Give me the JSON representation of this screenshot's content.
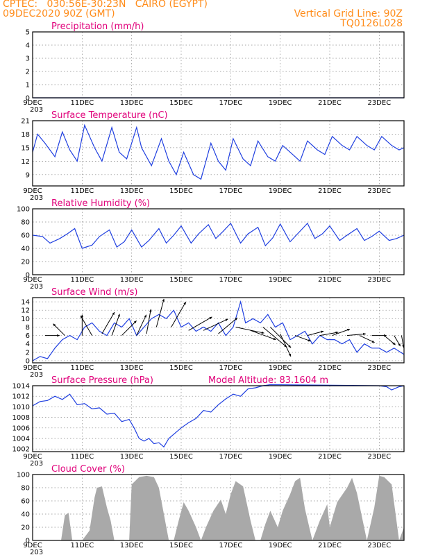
{
  "header": {
    "line1": "CPTEC:   030:56E-30:23N   CAIRO (EGYPT)",
    "line2": "09DEC2020 90Z (GMT)",
    "right1": "Vertical Grid Line: 90Z",
    "right2": "TQ0126L028"
  },
  "colors": {
    "header": "#ff8c1a",
    "title": "#e0007a",
    "line": "#1f3fe0",
    "cloud": "#a9a9a9"
  },
  "x_axis": {
    "range": [
      9.0,
      24.0
    ],
    "tick_days": [
      9,
      11,
      13,
      15,
      17,
      19,
      21,
      23
    ],
    "tick_labels": [
      "9DEC",
      "11DEC",
      "13DEC",
      "15DEC",
      "17DEC",
      "19DEC",
      "21DEC",
      "23DEC"
    ],
    "sub_label": "203"
  },
  "chart_data": [
    {
      "type": "line",
      "title": "Precipitation (mm/h)",
      "ylim": [
        0,
        5
      ],
      "yticks": [
        0,
        1,
        2,
        3,
        4,
        5
      ],
      "x": [
        9.0,
        24.0
      ],
      "y": [
        0,
        0
      ]
    },
    {
      "type": "line",
      "title": "Surface Temperature (nC)",
      "ylim": [
        6.5,
        21
      ],
      "yticks": [
        9,
        12,
        15,
        18,
        21
      ],
      "x": [
        9.0,
        9.2,
        9.5,
        9.9,
        10.2,
        10.5,
        10.8,
        11.1,
        11.5,
        11.8,
        12.2,
        12.5,
        12.8,
        13.2,
        13.4,
        13.8,
        14.2,
        14.5,
        14.8,
        15.1,
        15.5,
        15.8,
        16.2,
        16.5,
        16.8,
        17.1,
        17.5,
        17.8,
        18.1,
        18.5,
        18.8,
        19.1,
        19.5,
        19.8,
        20.1,
        20.5,
        20.8,
        21.1,
        21.5,
        21.8,
        22.1,
        22.5,
        22.8,
        23.1,
        23.5,
        23.8,
        24.0
      ],
      "y": [
        14,
        18,
        16,
        13,
        18.5,
        14.5,
        12,
        20,
        15,
        12,
        19.5,
        14,
        12.5,
        19.5,
        15,
        11,
        17,
        12,
        9,
        14,
        9,
        8,
        16,
        12,
        10,
        17,
        12.5,
        11,
        16.5,
        13,
        12,
        15.5,
        13.5,
        12,
        16.5,
        14.5,
        13.5,
        17.5,
        15.5,
        14.5,
        17.5,
        15.5,
        14.5,
        17.5,
        15.5,
        14.5,
        15
      ]
    },
    {
      "type": "line",
      "title": "Relative Humidity (%)",
      "ylim": [
        0,
        100
      ],
      "yticks": [
        0,
        20,
        40,
        60,
        80,
        100
      ],
      "x": [
        9.0,
        9.4,
        9.7,
        10.1,
        10.4,
        10.7,
        11.0,
        11.4,
        11.7,
        12.1,
        12.4,
        12.7,
        13.0,
        13.4,
        13.7,
        14.1,
        14.4,
        14.7,
        15.0,
        15.4,
        15.7,
        16.1,
        16.4,
        16.7,
        17.0,
        17.4,
        17.7,
        18.1,
        18.4,
        18.7,
        19.0,
        19.4,
        19.7,
        20.1,
        20.4,
        20.7,
        21.0,
        21.4,
        21.7,
        22.1,
        22.4,
        22.7,
        23.0,
        23.4,
        23.7,
        24.0
      ],
      "y": [
        60,
        58,
        48,
        55,
        62,
        70,
        40,
        45,
        58,
        68,
        42,
        50,
        68,
        42,
        52,
        70,
        48,
        60,
        74,
        48,
        62,
        76,
        55,
        66,
        78,
        48,
        62,
        72,
        44,
        56,
        77,
        50,
        62,
        78,
        55,
        62,
        74,
        52,
        60,
        70,
        52,
        58,
        66,
        52,
        55,
        60
      ]
    },
    {
      "type": "line",
      "title": "Surface Wind (m/s)",
      "ylim": [
        -0.5,
        15
      ],
      "yticks": [
        0,
        2,
        4,
        6,
        8,
        10,
        12,
        14
      ],
      "x": [
        9.0,
        9.3,
        9.6,
        9.9,
        10.2,
        10.5,
        10.8,
        11.1,
        11.4,
        11.7,
        12.0,
        12.3,
        12.6,
        12.9,
        13.2,
        13.5,
        13.8,
        14.1,
        14.4,
        14.7,
        15.0,
        15.3,
        15.6,
        15.9,
        16.2,
        16.5,
        16.8,
        17.1,
        17.4,
        17.6,
        17.9,
        18.2,
        18.5,
        18.8,
        19.1,
        19.4,
        19.7,
        20.0,
        20.3,
        20.6,
        20.9,
        21.2,
        21.5,
        21.8,
        22.1,
        22.4,
        22.7,
        23.0,
        23.3,
        23.6,
        24.0
      ],
      "y": [
        0,
        1,
        0.5,
        3,
        5,
        6,
        5,
        8,
        9,
        7,
        6,
        9,
        8,
        10,
        6,
        8,
        10,
        11,
        10,
        12,
        8,
        9,
        7,
        8,
        7,
        9,
        6,
        8,
        14,
        9,
        10,
        9,
        11,
        8,
        9,
        5,
        6,
        7,
        4,
        6,
        5,
        5,
        4,
        5,
        2,
        4,
        3,
        3,
        2,
        3,
        1.5
      ],
      "barbs": [
        {
          "x": 9.5,
          "speed": 3,
          "dir_deg": 0
        },
        {
          "x": 10.3,
          "speed": 4,
          "dir_deg": 135
        },
        {
          "x": 11.0,
          "speed": 6,
          "dir_deg": 90
        },
        {
          "x": 11.4,
          "speed": 7,
          "dir_deg": 120
        },
        {
          "x": 11.8,
          "speed": 8,
          "dir_deg": 60
        },
        {
          "x": 12.2,
          "speed": 7,
          "dir_deg": 70
        },
        {
          "x": 12.6,
          "speed": 6,
          "dir_deg": 45
        },
        {
          "x": 13.2,
          "speed": 7,
          "dir_deg": 65
        },
        {
          "x": 13.6,
          "speed": 8,
          "dir_deg": 80
        },
        {
          "x": 14.0,
          "speed": 10,
          "dir_deg": 75
        },
        {
          "x": 14.6,
          "speed": 10,
          "dir_deg": 60
        },
        {
          "x": 15.3,
          "speed": 9,
          "dir_deg": 30
        },
        {
          "x": 15.9,
          "speed": 9,
          "dir_deg": 25
        },
        {
          "x": 16.5,
          "speed": 8,
          "dir_deg": 40
        },
        {
          "x": 17.2,
          "speed": 10,
          "dir_deg": -12
        },
        {
          "x": 17.8,
          "speed": 9,
          "dir_deg": -20
        },
        {
          "x": 18.3,
          "speed": 11,
          "dir_deg": -40
        },
        {
          "x": 18.6,
          "speed": 10,
          "dir_deg": -45
        },
        {
          "x": 19.0,
          "speed": 8,
          "dir_deg": -65
        },
        {
          "x": 19.6,
          "speed": 4,
          "dir_deg": -20
        },
        {
          "x": 20.1,
          "speed": 4,
          "dir_deg": 15
        },
        {
          "x": 20.6,
          "speed": 5,
          "dir_deg": 10
        },
        {
          "x": 21.1,
          "speed": 5,
          "dir_deg": 20
        },
        {
          "x": 21.7,
          "speed": 5,
          "dir_deg": 5
        },
        {
          "x": 22.2,
          "speed": 4,
          "dir_deg": -25
        },
        {
          "x": 22.7,
          "speed": 3,
          "dir_deg": 0
        },
        {
          "x": 23.2,
          "speed": 3,
          "dir_deg": -40
        },
        {
          "x": 23.6,
          "speed": 2,
          "dir_deg": -60
        },
        {
          "x": 23.9,
          "speed": 2,
          "dir_deg": -80
        }
      ]
    },
    {
      "type": "line",
      "title": "Surface Pressure (hPa)",
      "annotation": "Model Altitude: 83.1604 m",
      "ylim": [
        1001.5,
        1014
      ],
      "yticks": [
        1002,
        1004,
        1006,
        1008,
        1010,
        1012,
        1014
      ],
      "x": [
        9.0,
        9.3,
        9.6,
        9.9,
        10.2,
        10.5,
        10.8,
        11.1,
        11.4,
        11.7,
        12.0,
        12.3,
        12.6,
        12.9,
        13.1,
        13.3,
        13.5,
        13.7,
        13.9,
        14.1,
        14.3,
        14.5,
        14.7,
        15.0,
        15.3,
        15.6,
        15.9,
        16.2,
        16.5,
        16.8,
        17.1,
        17.4,
        17.7,
        18.0,
        18.3,
        18.6,
        23.0,
        23.3,
        23.5,
        23.8,
        24.0
      ],
      "y": [
        1010.2,
        1011,
        1011.2,
        1012,
        1011.4,
        1012.4,
        1010.4,
        1010.6,
        1009.6,
        1009.8,
        1008.6,
        1008.8,
        1007.2,
        1007.6,
        1006,
        1004,
        1003.5,
        1004,
        1003,
        1003.2,
        1002.4,
        1004,
        1004.8,
        1006,
        1007,
        1007.8,
        1009.3,
        1009,
        1010.4,
        1011.5,
        1012.4,
        1012,
        1013.4,
        1013.6,
        1014,
        1014.2,
        1014,
        1013.8,
        1013.2,
        1013.8,
        1014
      ]
    },
    {
      "type": "area",
      "title": "Cloud Cover (%)",
      "ylim": [
        0,
        100
      ],
      "yticks": [
        0,
        20,
        40,
        60,
        80,
        100
      ],
      "x": [
        9.0,
        10.15,
        10.3,
        10.45,
        10.6,
        11.0,
        11.1,
        11.3,
        11.5,
        11.6,
        11.8,
        12.0,
        12.15,
        12.3,
        12.5,
        12.9,
        13.0,
        13.3,
        13.6,
        13.9,
        14.1,
        14.5,
        14.7,
        14.9,
        15.1,
        15.3,
        15.6,
        15.8,
        16.0,
        16.3,
        16.6,
        16.8,
        17.0,
        17.2,
        17.5,
        17.8,
        18.0,
        18.2,
        18.4,
        18.6,
        18.9,
        19.1,
        19.4,
        19.6,
        19.8,
        20.0,
        20.3,
        20.6,
        20.9,
        21.0,
        21.3,
        21.7,
        21.9,
        22.1,
        22.5,
        22.8,
        23.0,
        23.2,
        23.5,
        23.8,
        24.0
      ],
      "y": [
        0,
        0,
        38,
        42,
        0,
        0,
        5,
        15,
        65,
        80,
        82,
        50,
        30,
        0,
        0,
        0,
        85,
        96,
        98,
        96,
        80,
        0,
        0,
        30,
        58,
        45,
        20,
        0,
        20,
        45,
        62,
        40,
        70,
        90,
        82,
        30,
        0,
        0,
        25,
        45,
        20,
        45,
        70,
        90,
        95,
        48,
        0,
        30,
        55,
        20,
        58,
        80,
        95,
        72,
        0,
        50,
        98,
        96,
        85,
        0,
        20
      ]
    }
  ]
}
